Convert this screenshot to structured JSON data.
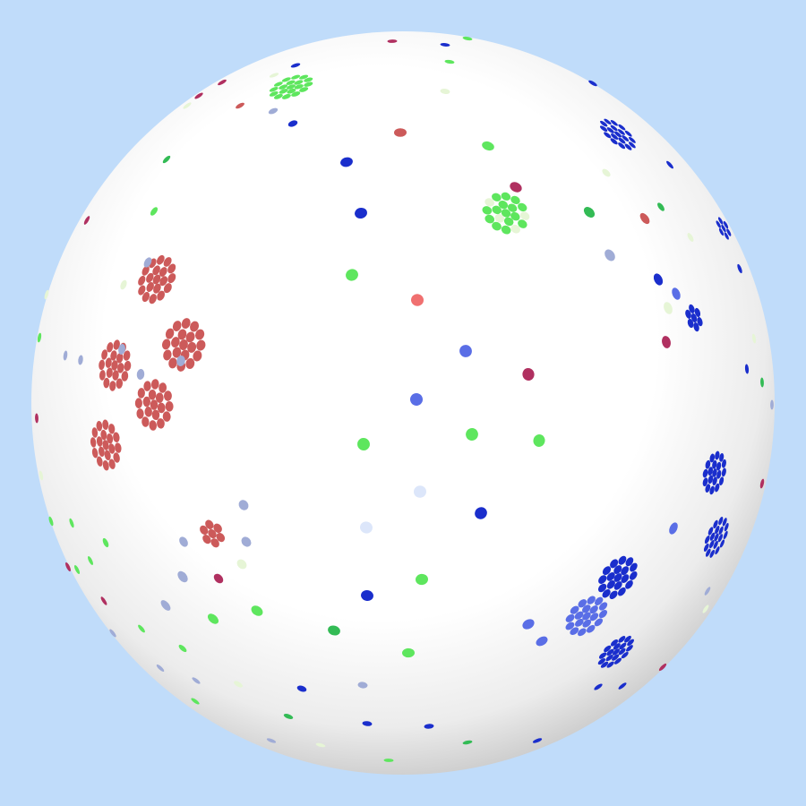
{
  "scene": {
    "background_color": "#c0dcfa",
    "sphere_color": "#ffffff",
    "sphere_shade_color": "#c8c8c8"
  },
  "palette": {
    "red": "#cc5a5a",
    "red_light": "#f07070",
    "crimson": "#b03060",
    "green": "#5ee65e",
    "green_dark": "#33bb55",
    "green_pale": "#e6f5d6",
    "blue": "#1a2ecc",
    "blue_mid": "#5a6ee6",
    "blue_pale": "#a0acd6",
    "blue_faint": "#dce6fa"
  },
  "clusters": [
    {
      "name": "red-cluster-upper",
      "color": "red"
    },
    {
      "name": "red-cluster-middle",
      "color": "red"
    },
    {
      "name": "red-cluster-left",
      "color": "red"
    },
    {
      "name": "red-cluster-center",
      "color": "red"
    },
    {
      "name": "red-cluster-lower",
      "color": "red"
    },
    {
      "name": "red-cluster-small",
      "color": "red"
    },
    {
      "name": "green-cluster-top",
      "color": "green"
    },
    {
      "name": "green-cluster-upper-center",
      "color": "green"
    },
    {
      "name": "blue-cluster-top-right",
      "color": "blue"
    },
    {
      "name": "blue-cluster-right-upper",
      "color": "blue"
    },
    {
      "name": "blue-cluster-right",
      "color": "blue"
    },
    {
      "name": "blue-cluster-right-lower-a",
      "color": "blue"
    },
    {
      "name": "blue-cluster-right-lower-b",
      "color": "blue"
    },
    {
      "name": "blue-cluster-bottom-right-a",
      "color": "blue"
    },
    {
      "name": "blue-cluster-bottom-right-b",
      "color": "blue"
    },
    {
      "name": "blue-cluster-bottom-right-c",
      "color": "blue"
    }
  ],
  "scattered_dot_colors": [
    "red",
    "red_light",
    "crimson",
    "green",
    "green_dark",
    "green_pale",
    "blue",
    "blue_mid",
    "blue_pale",
    "blue_faint"
  ]
}
